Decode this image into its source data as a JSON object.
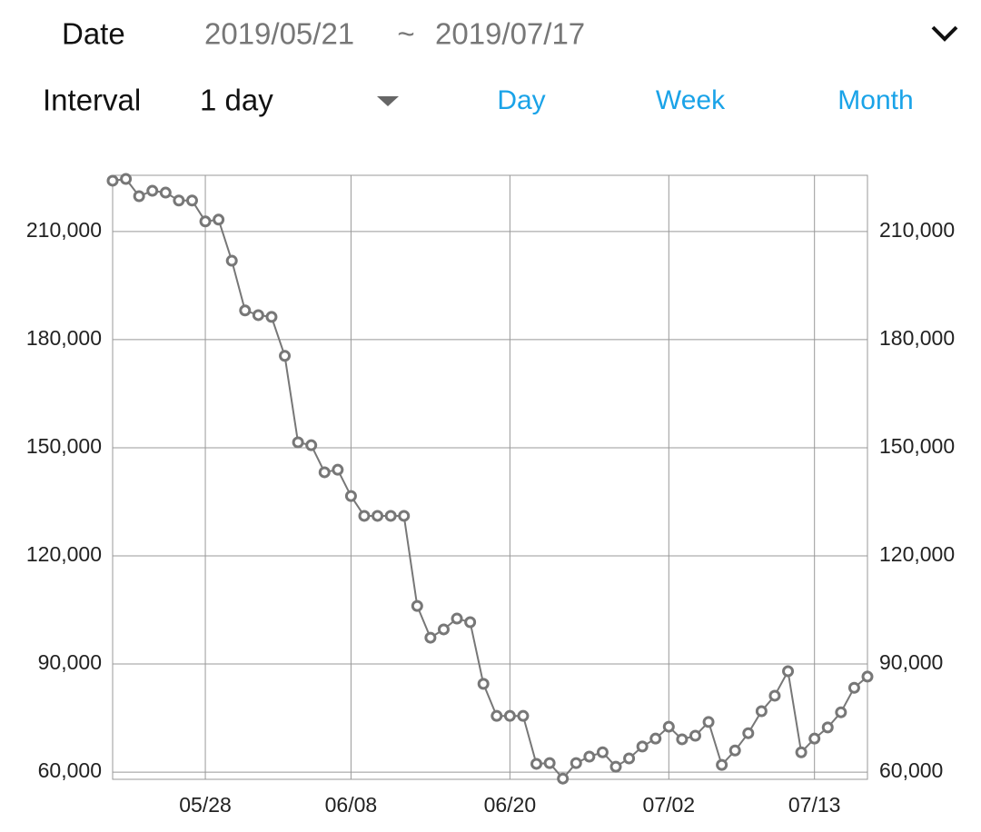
{
  "header": {
    "date_label": "Date",
    "date_start": "2019/05/21",
    "date_separator": "~",
    "date_end": "2019/07/17",
    "interval_label": "Interval",
    "interval_value": "1 day",
    "tabs": [
      "Day",
      "Week",
      "Month"
    ]
  },
  "chart_data": {
    "type": "line",
    "categories": [
      null,
      null,
      null,
      null,
      null,
      null,
      null,
      "05/28",
      null,
      null,
      null,
      null,
      null,
      null,
      null,
      null,
      null,
      null,
      "06/08",
      null,
      null,
      null,
      null,
      null,
      null,
      null,
      null,
      null,
      null,
      null,
      "06/20",
      null,
      null,
      null,
      null,
      null,
      null,
      null,
      null,
      null,
      null,
      null,
      "07/02",
      null,
      null,
      null,
      null,
      null,
      null,
      null,
      null,
      null,
      null,
      "07/13",
      null,
      null,
      null,
      null
    ],
    "values": [
      224100,
      224600,
      219800,
      221300,
      220800,
      218600,
      218600,
      212800,
      213300,
      201900,
      188100,
      186800,
      186300,
      175500,
      151500,
      150700,
      143200,
      143900,
      136600,
      131100,
      131100,
      131100,
      131100,
      106100,
      97300,
      99600,
      102600,
      101600,
      84500,
      75600,
      75600,
      75600,
      62300,
      62500,
      58200,
      62500,
      64300,
      65500,
      61500,
      63800,
      67100,
      69300,
      72600,
      69100,
      70100,
      73900,
      62000,
      66000,
      70800,
      76900,
      81200,
      88000,
      65500,
      69300,
      72400,
      76600,
      83400,
      86500
    ],
    "color": "#777777",
    "ylim": [
      58000,
      225600
    ],
    "yticks": [
      {
        "value": 60000,
        "label": "60,000"
      },
      {
        "value": 90000,
        "label": "90,000"
      },
      {
        "value": 120000,
        "label": "120,000"
      },
      {
        "value": 150000,
        "label": "150,000"
      },
      {
        "value": 180000,
        "label": "180,000"
      },
      {
        "value": 210000,
        "label": "210,000"
      }
    ],
    "grid": true
  }
}
